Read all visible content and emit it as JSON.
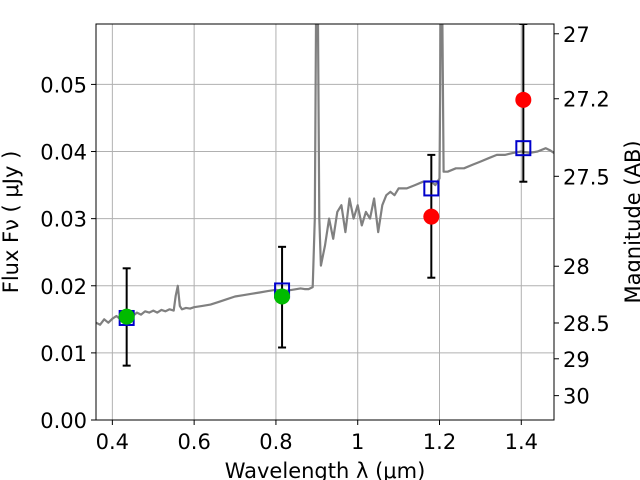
{
  "chart_data": {
    "type": "scatter",
    "xlabel": "Wavelength  λ (μm)",
    "ylabel": "Flux  Fν  ( μJy )",
    "ylabel_right": "Magnitude (AB)",
    "xlim": [
      0.36,
      1.48
    ],
    "ylim": [
      0.0,
      0.059
    ],
    "grid": true,
    "x_ticks": [
      0.4,
      0.6,
      0.8,
      1.0,
      1.2,
      1.4
    ],
    "x_tick_labels": [
      "0.4",
      "0.6",
      "0.8",
      "1",
      "1.2",
      "1.4"
    ],
    "y_ticks": [
      0.0,
      0.01,
      0.02,
      0.03,
      0.04,
      0.05
    ],
    "y_tick_labels": [
      "0.00",
      "0.01",
      "0.02",
      "0.03",
      "0.04",
      "0.05"
    ],
    "right_ticks": [
      27,
      27.2,
      27.5,
      28,
      28.5,
      29,
      30
    ],
    "right_tick_labels": [
      "27",
      "27.2",
      "27.5",
      "28",
      "28.5",
      "29",
      "30"
    ],
    "colors": {
      "sed": "#808080",
      "model": "#0000cc",
      "detected": "#00bb00",
      "undetected": "#ff0000",
      "errorbar": "#000000",
      "grid": "#b0b0b0"
    },
    "series": [
      {
        "marker": "square-open",
        "color": "#0000cc",
        "points": [
          {
            "x": 0.435,
            "y": 0.0152
          },
          {
            "x": 0.815,
            "y": 0.0193
          },
          {
            "x": 1.18,
            "y": 0.0345
          },
          {
            "x": 1.405,
            "y": 0.0405
          }
        ]
      },
      {
        "marker": "circle",
        "color": "#00bb00",
        "points": [
          {
            "x": 0.435,
            "y": 0.0154,
            "yerr_low": 0.0081,
            "yerr_high": 0.0226
          },
          {
            "x": 0.815,
            "y": 0.0184,
            "yerr_low": 0.0108,
            "yerr_high": 0.0258
          }
        ]
      },
      {
        "marker": "circle",
        "color": "#ff0000",
        "points": [
          {
            "x": 1.18,
            "y": 0.0303,
            "yerr_low": 0.0212,
            "yerr_high": 0.0395
          },
          {
            "x": 1.405,
            "y": 0.0477,
            "yerr_low": 0.0355,
            "yerr_high": 0.059
          }
        ]
      }
    ],
    "sed_line": {
      "color": "#808080",
      "points": [
        [
          0.36,
          0.0145
        ],
        [
          0.37,
          0.0142
        ],
        [
          0.38,
          0.015
        ],
        [
          0.39,
          0.0145
        ],
        [
          0.4,
          0.0151
        ],
        [
          0.41,
          0.0155
        ],
        [
          0.42,
          0.015
        ],
        [
          0.43,
          0.0158
        ],
        [
          0.44,
          0.016
        ],
        [
          0.45,
          0.0155
        ],
        [
          0.46,
          0.016
        ],
        [
          0.47,
          0.0157
        ],
        [
          0.48,
          0.0162
        ],
        [
          0.49,
          0.016
        ],
        [
          0.5,
          0.0163
        ],
        [
          0.51,
          0.016
        ],
        [
          0.52,
          0.0164
        ],
        [
          0.53,
          0.0162
        ],
        [
          0.54,
          0.0165
        ],
        [
          0.55,
          0.0163
        ],
        [
          0.555,
          0.0185
        ],
        [
          0.56,
          0.02
        ],
        [
          0.565,
          0.017
        ],
        [
          0.57,
          0.0165
        ],
        [
          0.58,
          0.0167
        ],
        [
          0.59,
          0.0166
        ],
        [
          0.6,
          0.0168
        ],
        [
          0.62,
          0.017
        ],
        [
          0.64,
          0.0172
        ],
        [
          0.66,
          0.0176
        ],
        [
          0.68,
          0.018
        ],
        [
          0.7,
          0.0184
        ],
        [
          0.72,
          0.0186
        ],
        [
          0.74,
          0.0188
        ],
        [
          0.76,
          0.019
        ],
        [
          0.78,
          0.0192
        ],
        [
          0.8,
          0.0194
        ],
        [
          0.82,
          0.0192
        ],
        [
          0.84,
          0.0194
        ],
        [
          0.86,
          0.0196
        ],
        [
          0.87,
          0.0195
        ],
        [
          0.88,
          0.0195
        ],
        [
          0.89,
          0.0198
        ],
        [
          0.895,
          0.03
        ],
        [
          0.898,
          0.059
        ],
        [
          0.903,
          0.059
        ],
        [
          0.906,
          0.03
        ],
        [
          0.91,
          0.023
        ],
        [
          0.92,
          0.026
        ],
        [
          0.93,
          0.03
        ],
        [
          0.94,
          0.027
        ],
        [
          0.95,
          0.031
        ],
        [
          0.96,
          0.032
        ],
        [
          0.97,
          0.028
        ],
        [
          0.98,
          0.033
        ],
        [
          0.99,
          0.03
        ],
        [
          1.0,
          0.032
        ],
        [
          1.01,
          0.029
        ],
        [
          1.02,
          0.031
        ],
        [
          1.03,
          0.03
        ],
        [
          1.04,
          0.033
        ],
        [
          1.05,
          0.028
        ],
        [
          1.06,
          0.032
        ],
        [
          1.07,
          0.0335
        ],
        [
          1.08,
          0.034
        ],
        [
          1.09,
          0.0335
        ],
        [
          1.1,
          0.0345
        ],
        [
          1.12,
          0.0345
        ],
        [
          1.14,
          0.035
        ],
        [
          1.16,
          0.0355
        ],
        [
          1.18,
          0.0355
        ],
        [
          1.19,
          0.035
        ],
        [
          1.2,
          0.036
        ],
        [
          1.203,
          0.059
        ],
        [
          1.207,
          0.059
        ],
        [
          1.21,
          0.037
        ],
        [
          1.22,
          0.037
        ],
        [
          1.24,
          0.0375
        ],
        [
          1.26,
          0.0375
        ],
        [
          1.28,
          0.038
        ],
        [
          1.3,
          0.0385
        ],
        [
          1.32,
          0.039
        ],
        [
          1.34,
          0.0395
        ],
        [
          1.36,
          0.0395
        ],
        [
          1.38,
          0.0398
        ],
        [
          1.4,
          0.04
        ],
        [
          1.42,
          0.0398
        ],
        [
          1.44,
          0.04
        ],
        [
          1.46,
          0.0405
        ],
        [
          1.47,
          0.0402
        ],
        [
          1.48,
          0.0398
        ]
      ]
    }
  }
}
